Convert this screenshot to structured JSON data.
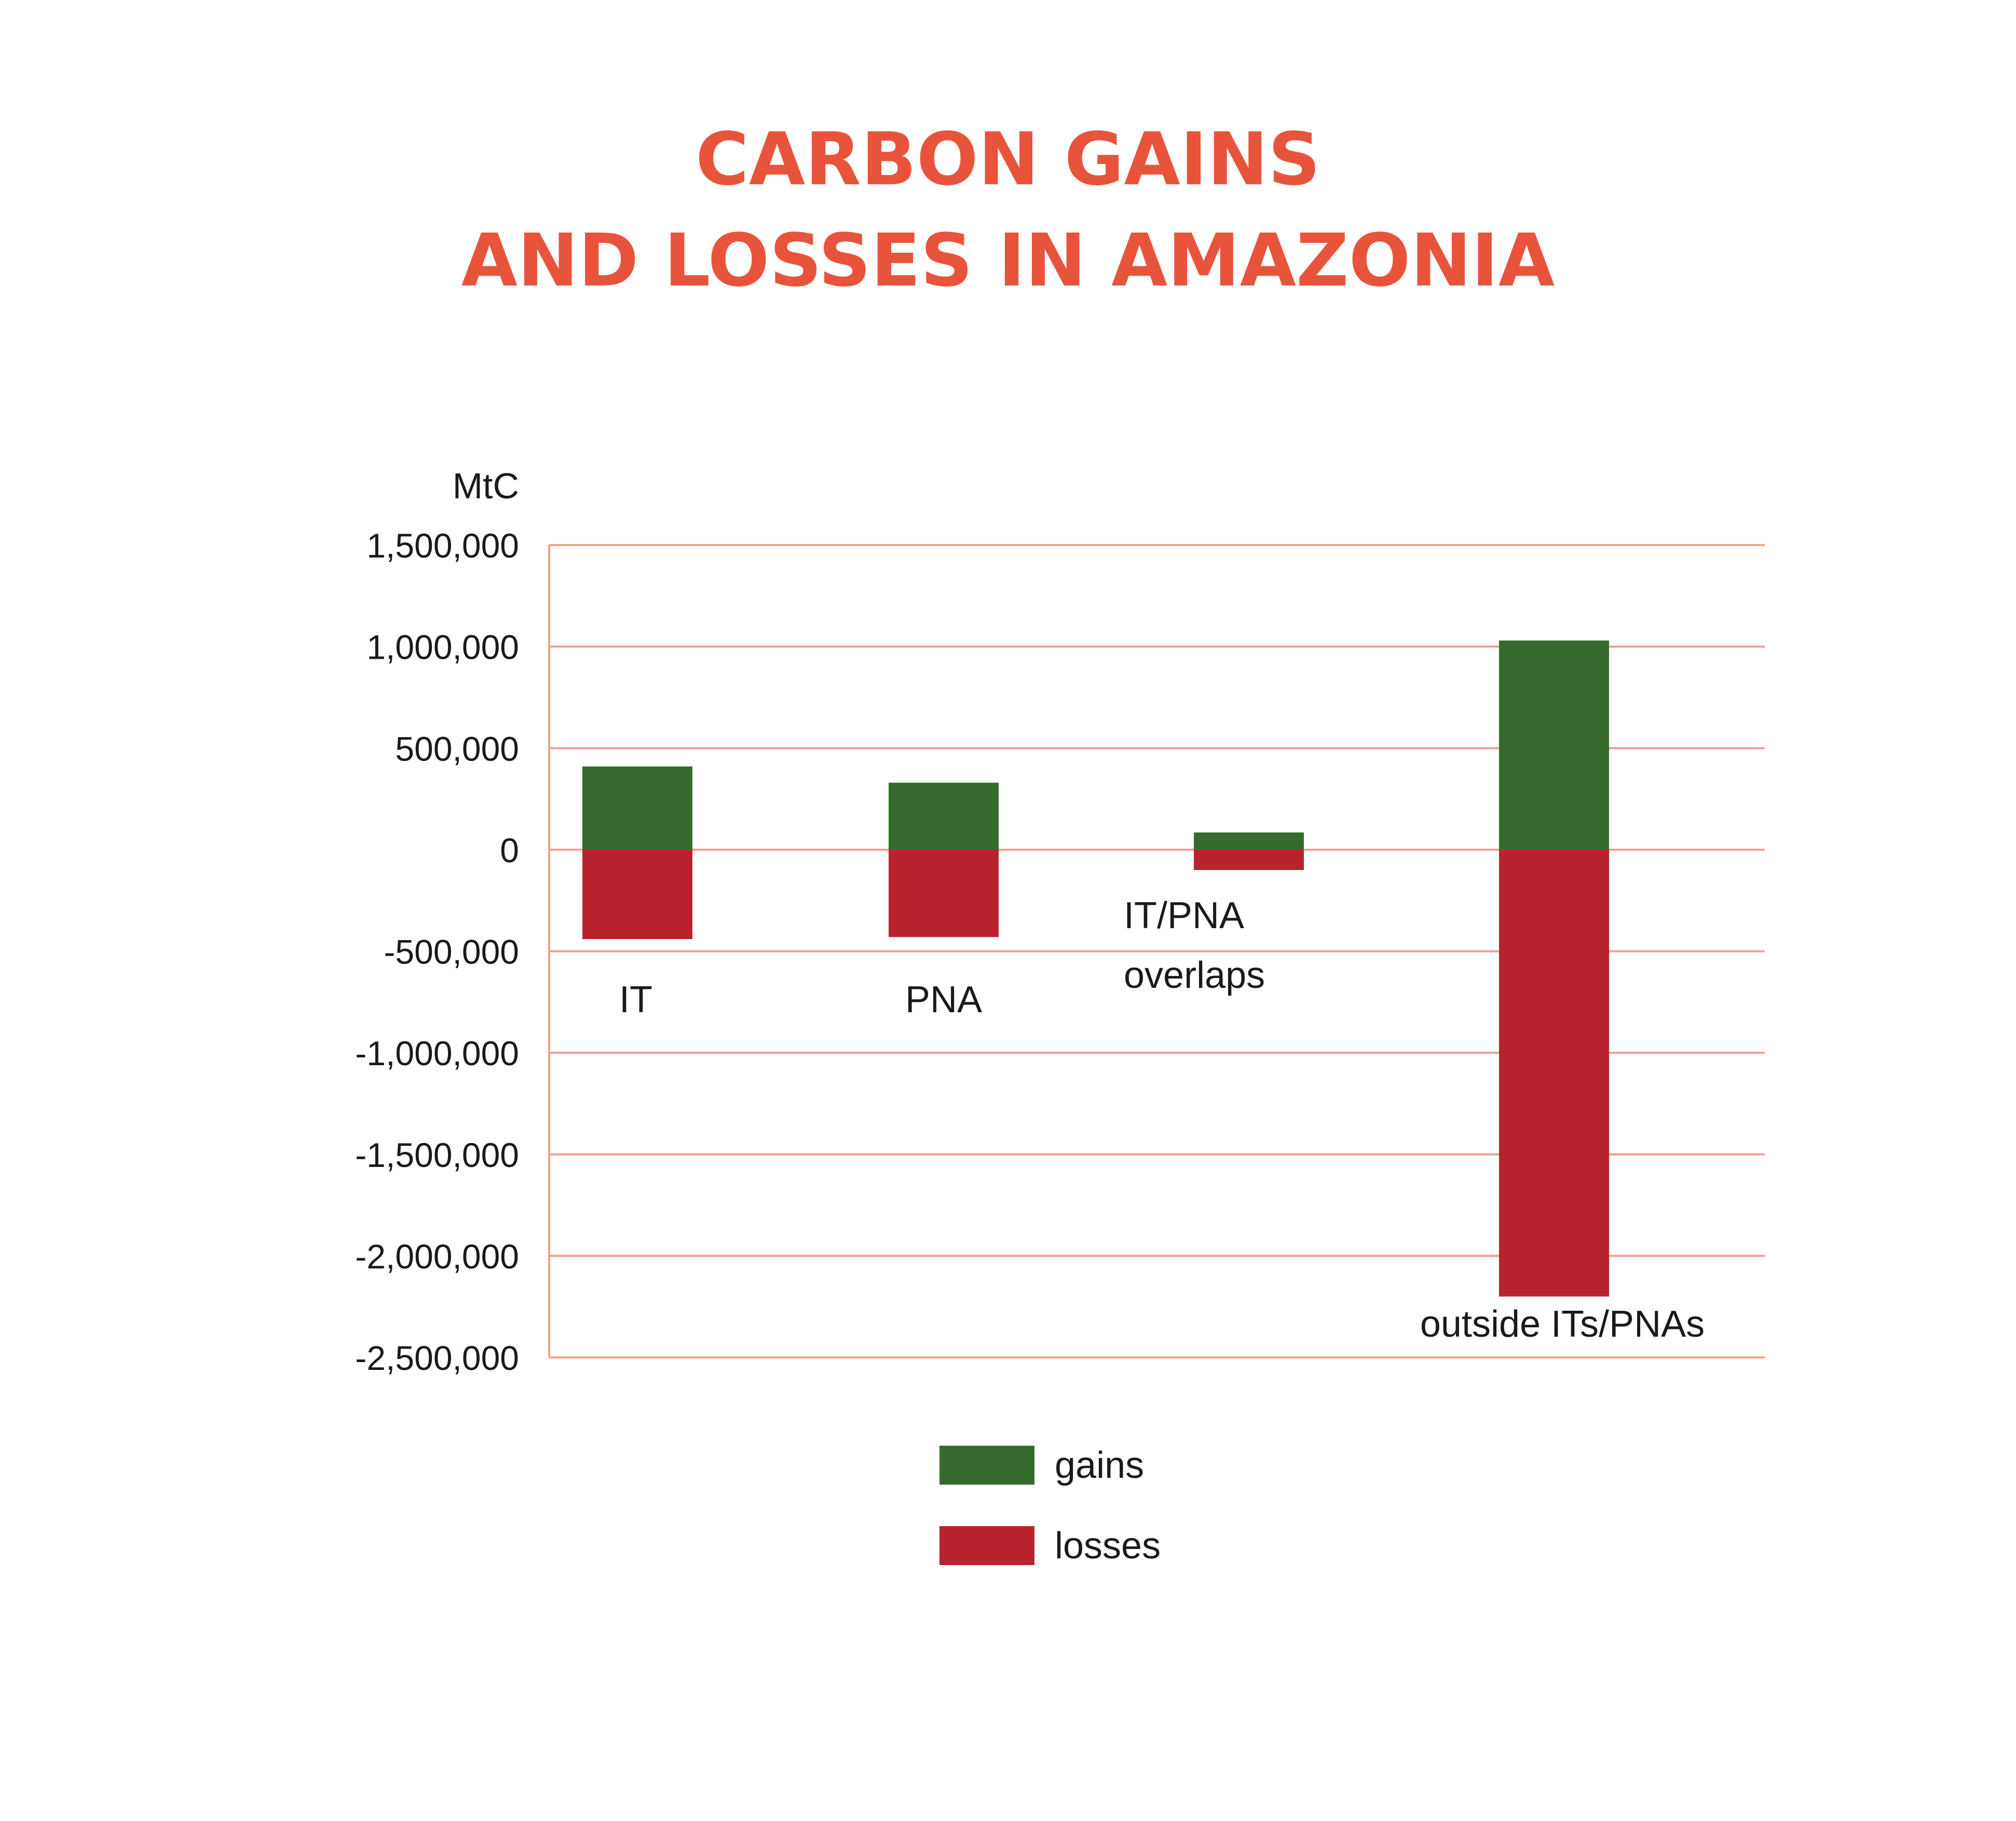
{
  "title_lines": [
    "CARBON GAINS",
    "AND LOSSES IN AMAZONIA"
  ],
  "colors": {
    "title": "#e8543b",
    "gridline": "#f0a08f",
    "gains": "#366b2e",
    "losses": "#b8232e",
    "text": "#1a1a1a"
  },
  "chart_data": {
    "type": "bar",
    "stacked": true,
    "title": "CARBON GAINS AND LOSSES IN AMAZONIA",
    "ylabel": "MtC",
    "ylim": [
      -2500000,
      1500000
    ],
    "yticks": [
      1500000,
      1000000,
      500000,
      0,
      -500000,
      -1000000,
      -1500000,
      -2000000,
      -2500000
    ],
    "ytick_labels": [
      "1,500,000",
      "1,000,000",
      "500,000",
      "0",
      "-500,000",
      "-1,000,000",
      "-1,500,000",
      "-2,000,000",
      "-2,500,000"
    ],
    "grid": true,
    "categories": [
      "IT",
      "PNA",
      "IT/PNA overlaps",
      "outside ITs/PNAs"
    ],
    "category_label_lines": [
      [
        "IT"
      ],
      [
        "PNA"
      ],
      [
        "IT/PNA",
        "overlaps"
      ],
      [
        "outside ITs/PNAs"
      ]
    ],
    "series": [
      {
        "name": "gains",
        "values": [
          410000,
          330000,
          85000,
          1030000
        ]
      },
      {
        "name": "losses",
        "values": [
          -440000,
          -430000,
          -100000,
          -2200000
        ]
      }
    ],
    "legend": {
      "position": "bottom-center",
      "entries": [
        "gains",
        "losses"
      ]
    }
  }
}
